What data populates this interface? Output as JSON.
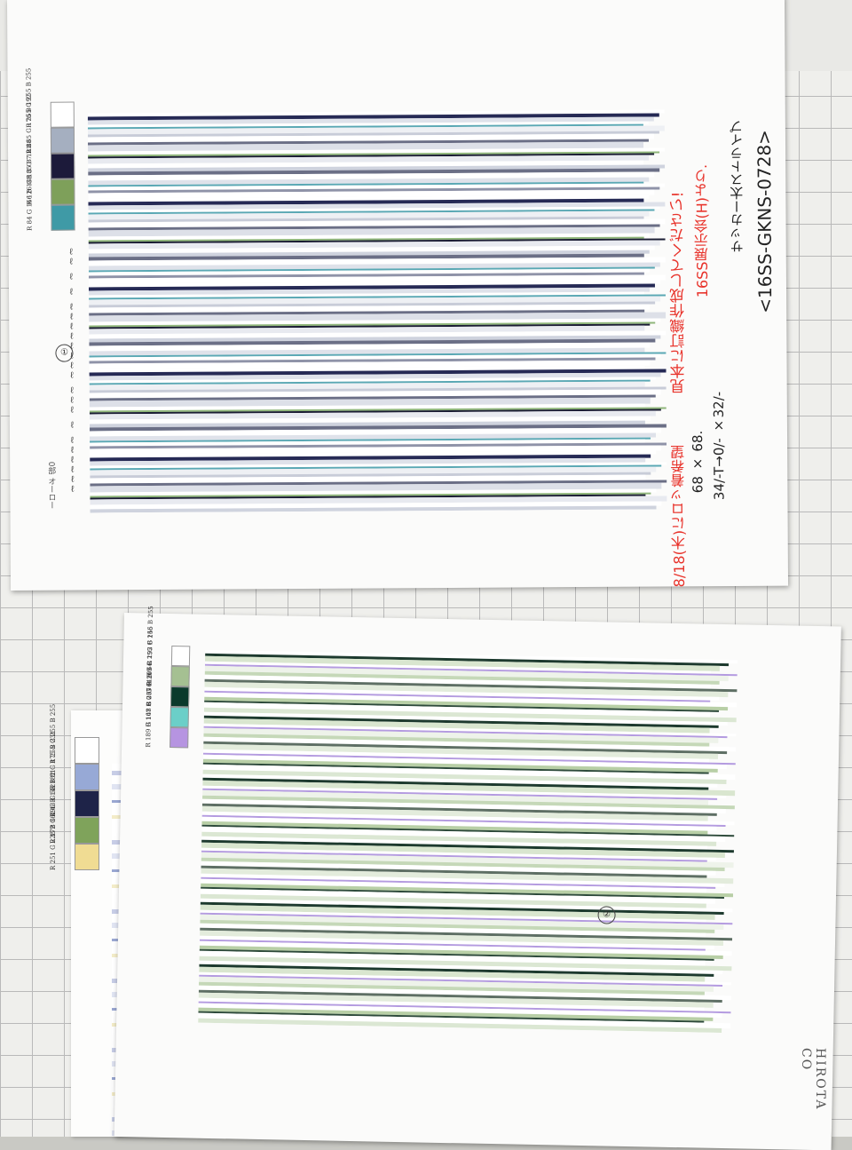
{
  "handwriting": {
    "title": "<16SS-GKNS-0728>",
    "subtitle": "サッカー太ストライプ",
    "note_red_1": "16SS展示会(H)より.",
    "note_red_2": "見本に訂織作成してください!",
    "spec_1": "34/-T→0/- ×32/-",
    "spec_2": "68 × 68.",
    "spec_red": "8/18(木)にロッ着希望",
    "circle_top": "①",
    "circle_bottom_1": "②",
    "circle_bottom_2": "②",
    "small_note": "0部 オーロー"
  },
  "brand_text": "HIROTA CO",
  "top_sheet": {
    "swatches": [
      {
        "color": "#ffffff",
        "rgb": "R 255  G 255  B 255"
      },
      {
        "color": "#a5afc0",
        "rgb": "R 165  G 176  B 192"
      },
      {
        "color": "#1c1a3a",
        "rgb": "R 3  G 7  B 88"
      },
      {
        "color": "#7ea05a",
        "rgb": "R 126  G 185  B 121"
      },
      {
        "color": "#3f9aa6",
        "rgb": "R 84  G 166  B 188"
      }
    ],
    "loop_marks": "ℓℓ ℓ ℓ ℓℓℓℓℓℓℓℓ ℓℓℓ ℓ ℓℓℓℓℓℓ"
  },
  "bottom_sheet": {
    "swatches": [
      {
        "color": "#ffffff",
        "rgb": "R 255  G 255  B 255"
      },
      {
        "color": "#a5c092",
        "rgb": "R 165  G 192  B 146"
      },
      {
        "color": "#0b3a2c",
        "rgb": "R 0  G 64  B 64"
      },
      {
        "color": "#6bcfc8",
        "rgb": "R 107  G 207  B 207"
      },
      {
        "color": "#b694e1",
        "rgb": "R 189  G 148  B 235"
      }
    ]
  },
  "small_sheet": {
    "swatches": [
      {
        "color": "#ffffff",
        "rgb": "R 255  G 255  B 255"
      },
      {
        "color": "#97a9d6",
        "rgb": "R 182  G 175  B 231"
      },
      {
        "color": "#1e2348",
        "rgb": "R 43  G 53  B 81"
      },
      {
        "color": "#7fa35b",
        "rgb": "R 172  G 196  B 142"
      },
      {
        "color": "#f0dc93",
        "rgb": "R 251  G 228  B 162"
      }
    ]
  },
  "colors": {
    "red_ink": "#e8322a",
    "navy": "#262a55",
    "slate": "#6b6f86",
    "teal": "#5aa8b4",
    "green": "#8fb67a",
    "dark_green": "#1d3a2e",
    "lavender": "#b49be0"
  }
}
